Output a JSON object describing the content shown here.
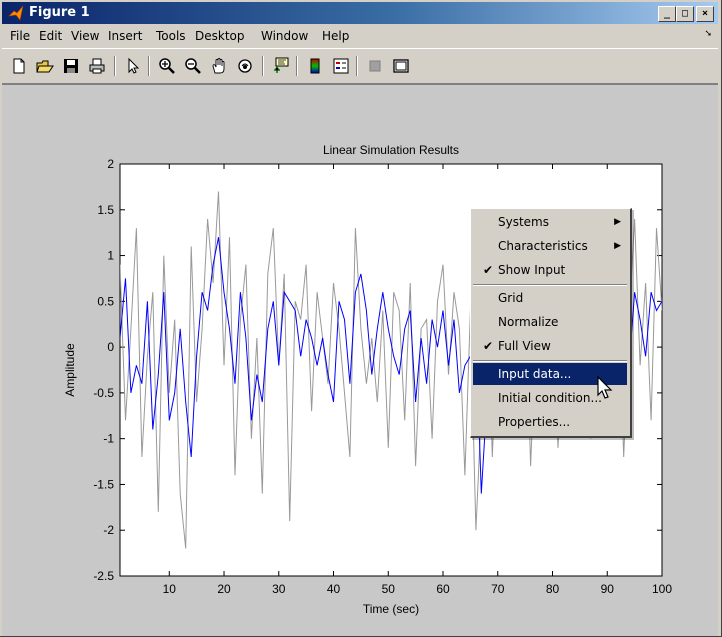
{
  "window": {
    "title": "Figure 1",
    "buttons": [
      "_",
      "□",
      "×"
    ]
  },
  "menubar": {
    "items": [
      "File",
      "Edit",
      "View",
      "Insert",
      "Tools",
      "Desktop",
      "Window",
      "Help"
    ],
    "overflow_icon": "menu-overflow-arrow"
  },
  "toolbar": {
    "icons": [
      "new-figure-icon",
      "open-file-icon",
      "save-icon",
      "print-icon",
      "edit-plot-arrow-icon",
      "zoom-in-icon",
      "zoom-out-icon",
      "pan-hand-icon",
      "rotate-3d-icon",
      "data-cursor-icon",
      "insert-colorbar-icon",
      "insert-legend-icon",
      "hide-plot-tools-icon",
      "show-plot-tools-icon"
    ]
  },
  "chart_data": {
    "type": "line",
    "title": "Linear Simulation Results",
    "xlabel": "Time (sec)",
    "ylabel": "Amplitude",
    "xlim": [
      1,
      100
    ],
    "ylim": [
      -2.5,
      2
    ],
    "xticks": [
      "10",
      "20",
      "30",
      "40",
      "50",
      "60",
      "70",
      "80",
      "90",
      "100"
    ],
    "yticks": [
      "2",
      "1.5",
      "1",
      "0.5",
      "0",
      "-0.5",
      "-1",
      "-1.5",
      "-2",
      "-2.5"
    ],
    "grid": false,
    "series": [
      {
        "color": "#999999",
        "x": [
          1,
          2,
          3,
          4,
          5,
          6,
          7,
          8,
          9,
          10,
          11,
          12,
          13,
          14,
          15,
          16,
          17,
          18,
          19,
          20,
          21,
          22,
          23,
          24,
          25,
          26,
          27,
          28,
          29,
          30,
          31,
          32,
          33,
          34,
          35,
          36,
          37,
          38,
          39,
          40,
          41,
          42,
          43,
          44,
          45,
          46,
          47,
          48,
          49,
          50,
          51,
          52,
          53,
          54,
          55,
          56,
          57,
          58,
          59,
          60,
          61,
          62,
          63,
          64,
          65,
          66,
          67,
          68,
          69,
          70,
          71,
          72,
          73,
          74,
          75,
          76,
          77,
          78,
          79,
          80,
          81,
          82,
          83,
          84,
          85,
          86,
          87,
          88,
          89,
          90,
          91,
          92,
          93,
          94,
          95,
          96,
          97,
          98,
          99,
          100
        ],
        "values": [
          0.9,
          -0.8,
          0.2,
          1.3,
          -1.2,
          -0.1,
          0.6,
          -1.8,
          1.0,
          -0.5,
          0.3,
          -1.6,
          -2.2,
          1.1,
          -0.6,
          0.2,
          1.4,
          0.7,
          1.7,
          -0.2,
          1.2,
          -1.4,
          0.3,
          0.9,
          -1.0,
          0.1,
          -1.6,
          0.8,
          1.3,
          -0.2,
          0.8,
          -1.9,
          0.5,
          0.3,
          0.9,
          -0.7,
          0.6,
          0.1,
          -0.4,
          0.7,
          0.2,
          -0.5,
          -1.2,
          1.3,
          0.2,
          -0.4,
          0.1,
          -0.6,
          0.4,
          -1.1,
          0.6,
          0.4,
          -0.8,
          0.7,
          -1.3,
          0.2,
          0.3,
          -1.0,
          0.5,
          0.9,
          -0.3,
          0.6,
          0.2,
          -1.4,
          0.4,
          -2.0,
          -0.7,
          0.8,
          -1.2,
          0.3,
          1.1,
          -0.3,
          0.5,
          -0.6,
          0.9,
          -1.3,
          0.2,
          0.4,
          -0.8,
          0.6,
          -1.1,
          0.3,
          -0.4,
          0.7,
          -0.9,
          0.2,
          -1.0,
          0.4,
          -0.7,
          1.2,
          -0.5,
          0.6,
          -1.2,
          0.3,
          1.4,
          -0.2,
          0.7,
          -0.8,
          1.3,
          0.4
        ]
      },
      {
        "color": "#0000ff",
        "x": [
          1,
          2,
          3,
          4,
          5,
          6,
          7,
          8,
          9,
          10,
          11,
          12,
          13,
          14,
          15,
          16,
          17,
          18,
          19,
          20,
          21,
          22,
          23,
          24,
          25,
          26,
          27,
          28,
          29,
          30,
          31,
          32,
          33,
          34,
          35,
          36,
          37,
          38,
          39,
          40,
          41,
          42,
          43,
          44,
          45,
          46,
          47,
          48,
          49,
          50,
          51,
          52,
          53,
          54,
          55,
          56,
          57,
          58,
          59,
          60,
          61,
          62,
          63,
          64,
          65,
          66,
          67,
          68,
          69,
          70,
          71,
          72,
          73,
          74,
          75,
          76,
          77,
          78,
          79,
          80,
          81,
          82,
          83,
          84,
          85,
          86,
          87,
          88,
          89,
          90,
          91,
          92,
          93,
          94,
          95,
          96,
          97,
          98,
          99,
          100
        ],
        "values": [
          0.1,
          0.75,
          -0.5,
          -0.2,
          -0.4,
          0.5,
          -0.9,
          -0.3,
          0.6,
          -0.8,
          -0.5,
          0.2,
          -0.6,
          -1.2,
          -0.1,
          0.6,
          0.4,
          0.9,
          1.2,
          0.6,
          0.2,
          -0.4,
          0.6,
          0.1,
          -0.8,
          -0.3,
          -0.6,
          0.2,
          0.5,
          -0.2,
          0.6,
          0.5,
          0.4,
          -0.1,
          0.3,
          0.1,
          -0.2,
          0.1,
          -0.3,
          -0.6,
          0.5,
          0.3,
          -0.4,
          0.6,
          0.8,
          0.4,
          -0.3,
          0.2,
          0.6,
          0.2,
          -0.1,
          -0.3,
          0.2,
          0.4,
          -0.6,
          0.1,
          -0.4,
          0.3,
          0.0,
          0.4,
          -0.2,
          0.3,
          -0.5,
          -0.2,
          -0.1,
          0.2,
          -1.6,
          -0.6,
          0.3,
          -0.3,
          0.5,
          -0.5,
          -0.4,
          0.2,
          -0.3,
          0.1,
          -0.6,
          -0.4,
          0.2,
          -0.3,
          -0.5,
          -0.1,
          0.2,
          -0.4,
          -0.2,
          0.3,
          -0.6,
          -0.2,
          0.4,
          -0.3,
          0.2,
          -0.4,
          0.1,
          -0.2,
          0.6,
          0.3,
          -0.1,
          0.6,
          0.4,
          0.5
        ]
      }
    ]
  },
  "context_menu": {
    "items": [
      {
        "label": "Systems",
        "check": "",
        "submenu": "▶",
        "selected": false
      },
      {
        "label": "Characteristics",
        "check": "",
        "submenu": "▶",
        "selected": false
      },
      {
        "label": "Show Input",
        "check": "✔",
        "submenu": "",
        "selected": false
      },
      {
        "label": "Grid",
        "check": "",
        "submenu": "",
        "selected": false
      },
      {
        "label": "Normalize",
        "check": "",
        "submenu": "",
        "selected": false
      },
      {
        "label": "Full View",
        "check": "✔",
        "submenu": "",
        "selected": false
      },
      {
        "label": "Input data...",
        "check": "",
        "submenu": "",
        "selected": true
      },
      {
        "label": "Initial condition...",
        "check": "",
        "submenu": "",
        "selected": false
      },
      {
        "label": "Properties...",
        "check": "",
        "submenu": "",
        "selected": false
      }
    ]
  }
}
